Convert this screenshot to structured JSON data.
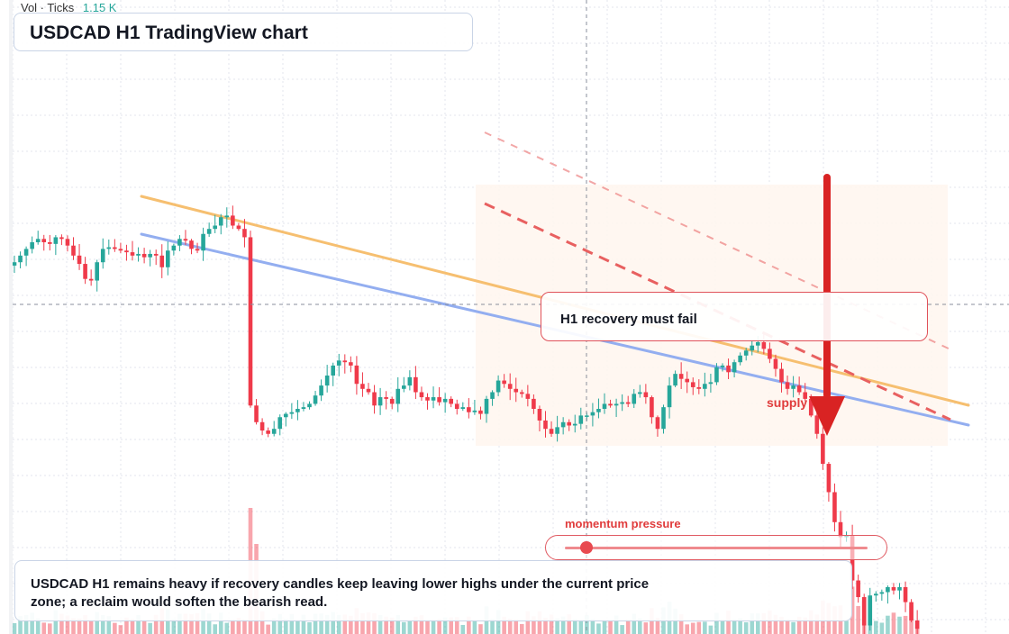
{
  "title": "USDCAD H1 TradingView chart",
  "volume_readout": {
    "label": "Vol · Ticks",
    "value": "1.15 K"
  },
  "callout": {
    "text": "H1 recovery must fail"
  },
  "zone_label": "supply",
  "momentum": {
    "label": "momentum pressure",
    "level": 0.07
  },
  "note": "USDCAD H1 remains heavy if recovery candles keep leaving lower highs under the current price zone; a reclaim would soften the bearish read.",
  "colors": {
    "bull": "#26a69a",
    "bear": "#ef3a4a",
    "grid": "#e3e6ec",
    "orange_line": "#f6bf70",
    "blue_line": "#93aef0",
    "red_dash": "#e86060",
    "zone_fill": "#fff4ec",
    "arrow": "#d92323"
  },
  "chart_data": {
    "type": "candlestick",
    "y_scale": "unlabeled",
    "closes": [
      48,
      52,
      56,
      60,
      62,
      60,
      59,
      63,
      62,
      58,
      52,
      47,
      38,
      37,
      48,
      56,
      57,
      56,
      55,
      54,
      52,
      53,
      51,
      53,
      52,
      45,
      55,
      58,
      62,
      61,
      56,
      55,
      65,
      68,
      70,
      75,
      76,
      70,
      68,
      63,
      -38,
      -48,
      -53,
      -55,
      -52,
      -45,
      -43,
      -42,
      -40,
      -39,
      -37,
      -32,
      -26,
      -20,
      -14,
      -11,
      -12,
      -14,
      -25,
      -28,
      -30,
      -38,
      -33,
      -34,
      -37,
      -28,
      -26,
      -21,
      -30,
      -33,
      -35,
      -33,
      -36,
      -34,
      -37,
      -40,
      -39,
      -42,
      -41,
      -43,
      -34,
      -30,
      -23,
      -25,
      -28,
      -30,
      -31,
      -34,
      -40,
      -47,
      -52,
      -55,
      -51,
      -48,
      -50,
      -49,
      -44,
      -44,
      -42,
      -40,
      -37,
      -38,
      -37,
      -36,
      -37,
      -31,
      -30,
      -33,
      -45,
      -52,
      -39,
      -26,
      -19,
      -22,
      -24,
      -27,
      -28,
      -25,
      -24,
      -15,
      -14,
      -18,
      -12,
      -8,
      -5,
      -2,
      0,
      -4,
      -10,
      -16,
      -24,
      -28,
      -26,
      -30,
      -34,
      -44,
      -55,
      -73,
      -90,
      -108,
      -117,
      -116,
      -143,
      -153,
      -170,
      -152,
      -151,
      -150,
      -147,
      -149,
      -147,
      -156,
      -167,
      -172
    ],
    "trendlines": [
      {
        "name": "orange trendline",
        "color": "#f6bf70"
      },
      {
        "name": "blue trendline",
        "color": "#93aef0"
      },
      {
        "name": "descending channel",
        "color": "#e86060",
        "style": "dashed"
      }
    ],
    "annotations": [
      "H1 recovery must fail",
      "supply",
      "momentum pressure",
      "down arrow"
    ],
    "grid": true
  }
}
